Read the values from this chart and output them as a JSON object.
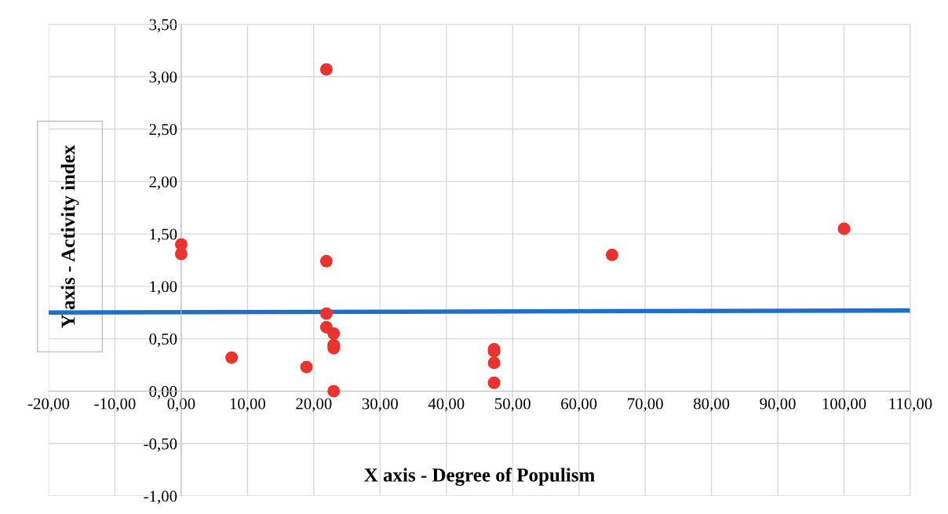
{
  "chart_data": {
    "type": "scatter",
    "xlabel": "X axis - Degree of Populism",
    "ylabel": "Y axis - Activity index",
    "xlim": [
      -20,
      110
    ],
    "ylim": [
      -1,
      3.5
    ],
    "xticks": [
      {
        "value": -20,
        "label": "-20,00"
      },
      {
        "value": -10,
        "label": "-10,00"
      },
      {
        "value": 0,
        "label": "0,00"
      },
      {
        "value": 10,
        "label": "10,00"
      },
      {
        "value": 20,
        "label": "20,00"
      },
      {
        "value": 30,
        "label": "30,00"
      },
      {
        "value": 40,
        "label": "40,00"
      },
      {
        "value": 50,
        "label": "50,00"
      },
      {
        "value": 60,
        "label": "60,00"
      },
      {
        "value": 70,
        "label": "70,00"
      },
      {
        "value": 80,
        "label": "80,00"
      },
      {
        "value": 90,
        "label": "90,00"
      },
      {
        "value": 100,
        "label": "100,00"
      },
      {
        "value": 110,
        "label": "110,00"
      }
    ],
    "yticks": [
      {
        "value": -1,
        "label": "-1,00"
      },
      {
        "value": -0.5,
        "label": "-0,50"
      },
      {
        "value": 0,
        "label": "0,00"
      },
      {
        "value": 0.5,
        "label": "0,50"
      },
      {
        "value": 1,
        "label": "1,00"
      },
      {
        "value": 1.5,
        "label": "1,50"
      },
      {
        "value": 2,
        "label": "2,00"
      },
      {
        "value": 2.5,
        "label": "2,50"
      },
      {
        "value": 3,
        "label": "3,00"
      },
      {
        "value": 3.5,
        "label": "3,50"
      }
    ],
    "grid": true,
    "marker": "circle",
    "series": [
      {
        "color": "#e8332e",
        "x": [
          0,
          0,
          7.6,
          18.9,
          21.9,
          21.9,
          21.9,
          21.9,
          23.0,
          23.0,
          23.0,
          23.0,
          47.2,
          47.2,
          47.2,
          47.2,
          65.0,
          100
        ],
        "values": [
          1.4,
          1.31,
          0.32,
          0.23,
          3.07,
          1.24,
          0.74,
          0.61,
          0.55,
          0.44,
          0.41,
          0.0,
          0.4,
          0.38,
          0.27,
          0.08,
          1.3,
          1.55
        ]
      },
      {
        "type": "line",
        "color": "#1f6fc8",
        "line_style": "solid",
        "marker": "none",
        "x": [
          -20,
          110
        ],
        "values": [
          0.75,
          0.77
        ]
      }
    ]
  }
}
